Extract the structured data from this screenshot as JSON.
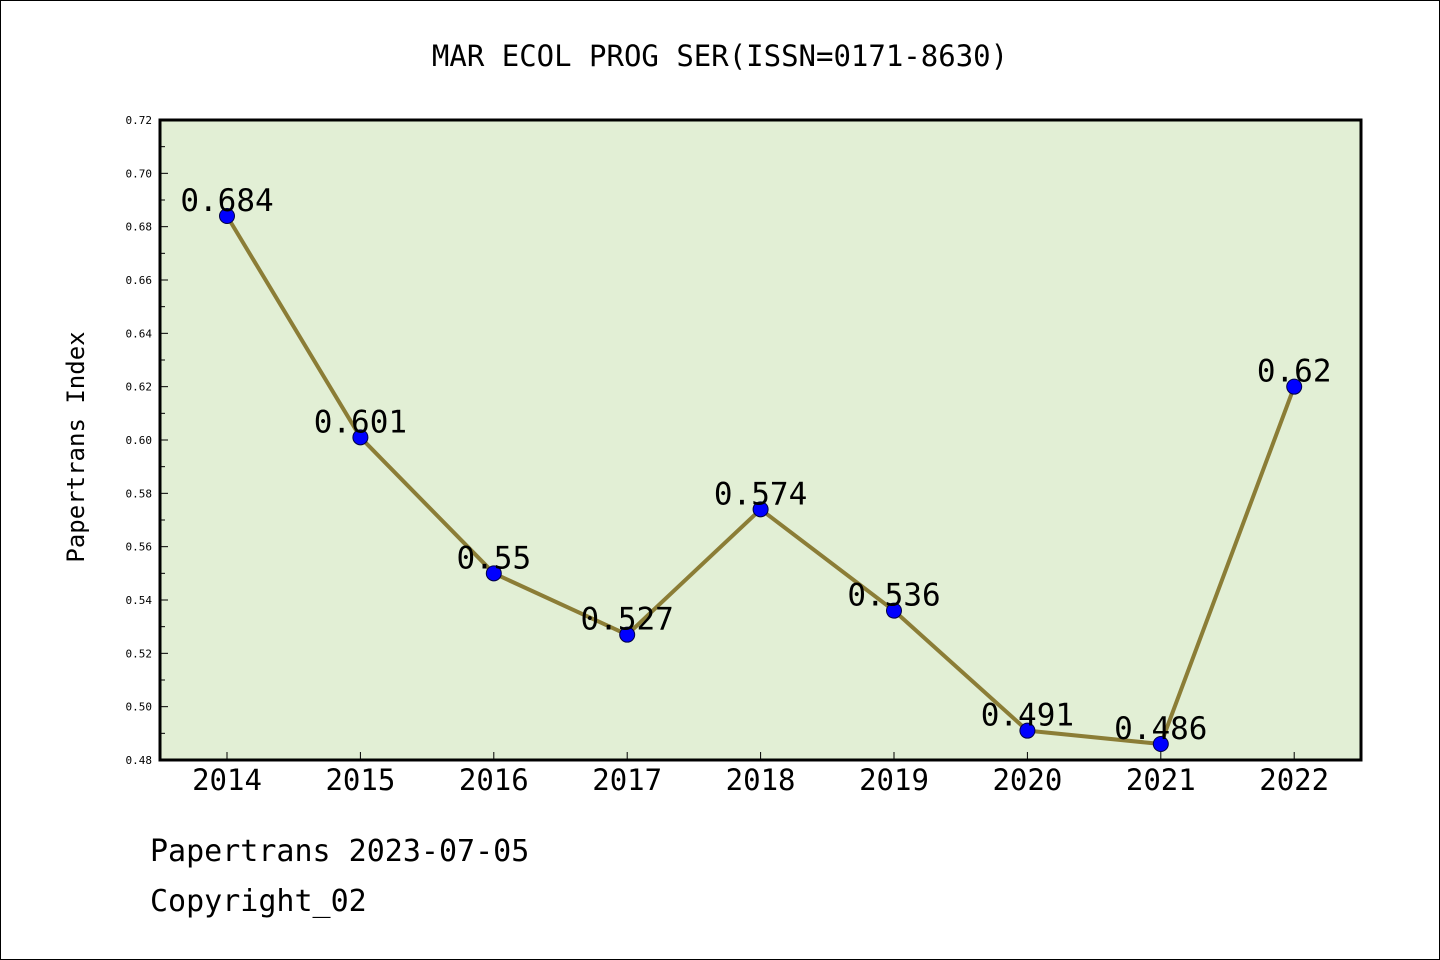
{
  "chart_data": {
    "type": "line",
    "title": "MAR ECOL PROG SER(ISSN=0171-8630)",
    "xlabel": "",
    "ylabel": "Papertrans Index",
    "categories": [
      "2014",
      "2015",
      "2016",
      "2017",
      "2018",
      "2019",
      "2020",
      "2021",
      "2022"
    ],
    "values": [
      0.684,
      0.601,
      0.55,
      0.527,
      0.574,
      0.536,
      0.491,
      0.486,
      0.62
    ],
    "data_labels": [
      "0.684",
      "0.601",
      "0.55",
      "0.527",
      "0.574",
      "0.536",
      "0.491",
      "0.486",
      "0.62"
    ],
    "ylim": [
      0.48,
      0.72
    ],
    "yticks": [
      "0.48",
      "0.50",
      "0.52",
      "0.54",
      "0.56",
      "0.58",
      "0.60",
      "0.62",
      "0.64",
      "0.66",
      "0.68",
      "0.70",
      "0.72"
    ],
    "grid": false,
    "legend": "none",
    "colors": {
      "plot_background": "#e2efd5",
      "line": "#8b7d36",
      "marker": "#0000ff",
      "axes": "#000000"
    }
  },
  "footer": {
    "date": "Papertrans 2023-07-05",
    "copyright": "Copyright_02"
  }
}
